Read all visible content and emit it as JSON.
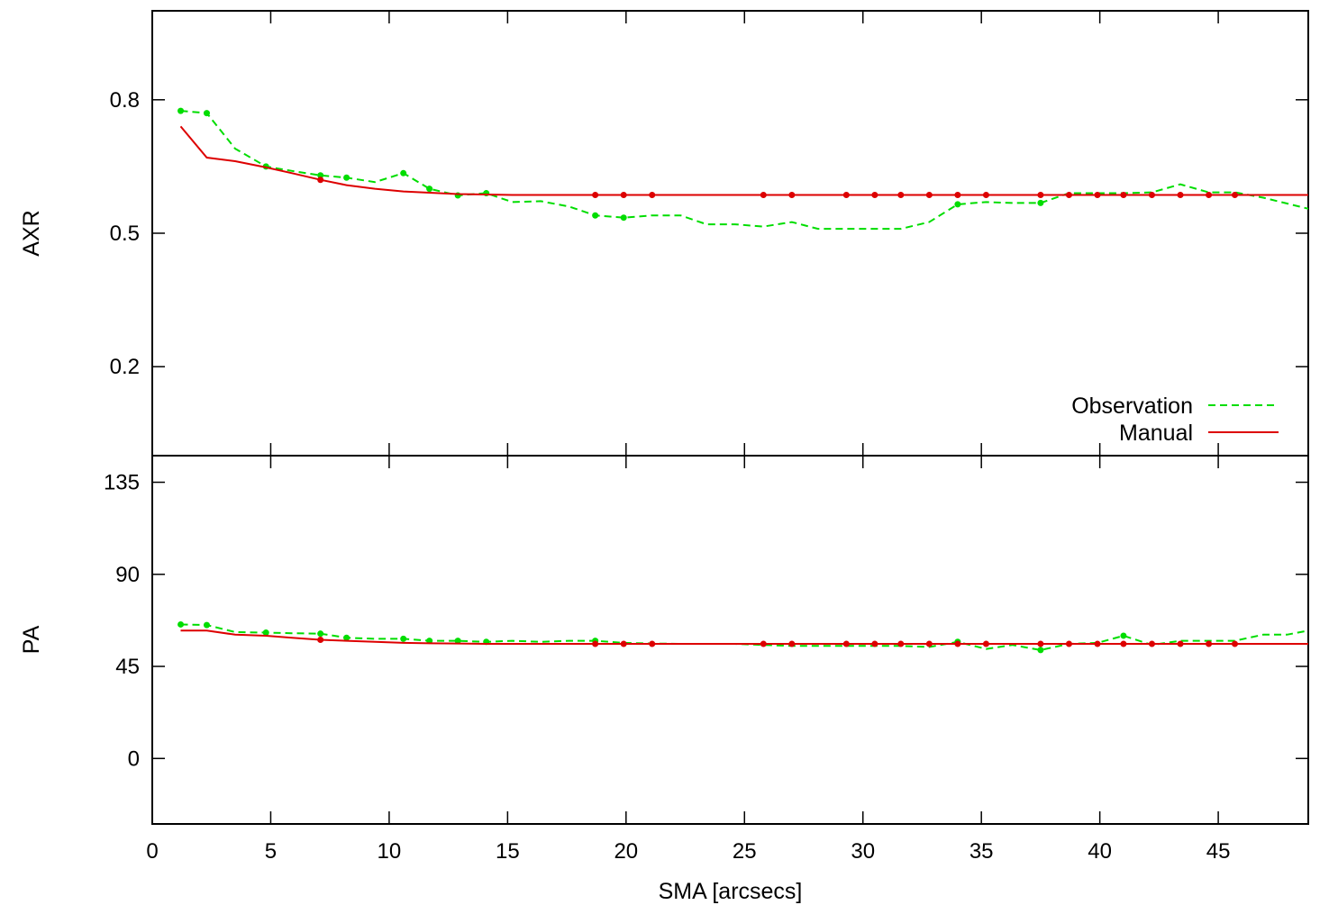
{
  "chart_data": [
    {
      "type": "line",
      "panel": "top",
      "ylabel": "AXR",
      "xlim": [
        0,
        48.8
      ],
      "ylim": [
        0.0,
        1.0
      ],
      "yticks": [
        {
          "value": 0.2,
          "label": "0.2"
        },
        {
          "value": 0.5,
          "label": "0.5"
        },
        {
          "value": 0.8,
          "label": "0.8"
        }
      ],
      "legend": {
        "position": "bottom-right",
        "entries": [
          {
            "label": "Observation",
            "series": 0
          },
          {
            "label": "Manual",
            "series": 1
          }
        ]
      },
      "series": [
        {
          "name": "Observation",
          "color": "#00dd00",
          "style": "dashed",
          "x": [
            1.2,
            2.3,
            3.5,
            4.8,
            5.9,
            7.1,
            8.2,
            9.4,
            10.6,
            11.7,
            12.9,
            14.1,
            15.2,
            16.4,
            17.6,
            18.7,
            19.9,
            21.1,
            22.3,
            23.4,
            24.6,
            25.8,
            27.0,
            28.1,
            29.3,
            30.5,
            31.6,
            32.8,
            34.0,
            35.2,
            36.3,
            37.5,
            38.7,
            39.9,
            41.0,
            42.2,
            43.4,
            44.6,
            45.7,
            46.9,
            48.8
          ],
          "y": [
            0.775,
            0.77,
            0.69,
            0.65,
            0.64,
            0.63,
            0.625,
            0.615,
            0.635,
            0.6,
            0.585,
            0.59,
            0.57,
            0.572,
            0.56,
            0.54,
            0.535,
            0.54,
            0.54,
            0.52,
            0.52,
            0.515,
            0.525,
            0.51,
            0.51,
            0.51,
            0.51,
            0.525,
            0.565,
            0.57,
            0.568,
            0.568,
            0.59,
            0.59,
            0.59,
            0.592,
            0.61,
            0.592,
            0.592,
            0.58,
            0.555
          ],
          "markers": [
            1.2,
            2.3,
            4.8,
            7.1,
            8.2,
            10.6,
            11.7,
            12.9,
            14.1,
            18.7,
            19.9,
            34.0,
            37.5
          ]
        },
        {
          "name": "Manual",
          "color": "#dd0000",
          "style": "solid",
          "x": [
            1.2,
            2.3,
            3.5,
            4.8,
            5.9,
            7.1,
            8.2,
            9.4,
            10.6,
            11.7,
            12.9,
            14.1,
            15.2,
            16.4,
            17.6,
            18.7,
            19.9,
            21.1,
            22.3,
            23.4,
            24.6,
            25.8,
            27.0,
            28.1,
            29.3,
            30.5,
            31.6,
            32.8,
            34.0,
            35.2,
            36.3,
            37.5,
            38.7,
            39.9,
            41.0,
            42.2,
            43.4,
            44.6,
            45.7,
            46.9,
            48.8
          ],
          "y": [
            0.74,
            0.67,
            0.662,
            0.648,
            0.635,
            0.62,
            0.608,
            0.6,
            0.594,
            0.591,
            0.588,
            0.587,
            0.586,
            0.586,
            0.586,
            0.586,
            0.586,
            0.586,
            0.586,
            0.586,
            0.586,
            0.586,
            0.586,
            0.586,
            0.586,
            0.586,
            0.586,
            0.586,
            0.586,
            0.586,
            0.586,
            0.586,
            0.586,
            0.586,
            0.586,
            0.586,
            0.586,
            0.586,
            0.586,
            0.586,
            0.586
          ],
          "markers": [
            7.1,
            18.7,
            19.9,
            21.1,
            25.8,
            27.0,
            29.3,
            30.5,
            31.6,
            32.8,
            34.0,
            35.2,
            37.5,
            38.7,
            39.9,
            41.0,
            42.2,
            43.4,
            44.6,
            45.7
          ]
        }
      ]
    },
    {
      "type": "line",
      "panel": "bottom",
      "ylabel": "PA",
      "xlabel": "SMA [arcsecs]",
      "xlim": [
        0,
        48.8
      ],
      "ylim": [
        -32,
        148
      ],
      "yticks": [
        {
          "value": 0,
          "label": "0"
        },
        {
          "value": 45,
          "label": "45"
        },
        {
          "value": 90,
          "label": "90"
        },
        {
          "value": 135,
          "label": "135"
        }
      ],
      "xticks": [
        {
          "value": 0,
          "label": "0"
        },
        {
          "value": 5,
          "label": "5"
        },
        {
          "value": 10,
          "label": "10"
        },
        {
          "value": 15,
          "label": "15"
        },
        {
          "value": 20,
          "label": "20"
        },
        {
          "value": 25,
          "label": "25"
        },
        {
          "value": 30,
          "label": "30"
        },
        {
          "value": 35,
          "label": "35"
        },
        {
          "value": 40,
          "label": "40"
        },
        {
          "value": 45,
          "label": "45"
        }
      ],
      "series": [
        {
          "name": "Observation",
          "color": "#00dd00",
          "style": "dashed",
          "x": [
            1.2,
            2.3,
            3.5,
            4.8,
            5.9,
            7.1,
            8.2,
            9.4,
            10.6,
            11.7,
            12.9,
            14.1,
            15.2,
            16.4,
            17.6,
            18.7,
            19.9,
            21.1,
            22.3,
            23.4,
            24.6,
            25.8,
            27.0,
            28.1,
            29.3,
            30.5,
            31.6,
            32.8,
            34.0,
            35.2,
            36.3,
            37.5,
            38.7,
            39.9,
            41.0,
            42.2,
            43.4,
            44.6,
            45.7,
            46.9,
            47.9,
            48.8
          ],
          "y": [
            65.5,
            65.2,
            61.8,
            61.5,
            61.2,
            61.0,
            59.0,
            58.5,
            58.5,
            57.5,
            57.5,
            57.0,
            57.5,
            57.0,
            57.5,
            57.5,
            56.5,
            56.2,
            56.0,
            56.0,
            56.0,
            55.5,
            55.0,
            55.0,
            55.0,
            55.0,
            55.0,
            54.5,
            57.0,
            53.5,
            55.5,
            53.0,
            56.0,
            56.5,
            60.0,
            55.5,
            57.5,
            57.5,
            57.5,
            60.5,
            60.5,
            62.5
          ],
          "markers": [
            1.2,
            2.3,
            4.8,
            7.1,
            8.2,
            10.6,
            11.7,
            12.9,
            14.1,
            18.7,
            34.0,
            37.5,
            41.0
          ]
        },
        {
          "name": "Manual",
          "color": "#dd0000",
          "style": "solid",
          "x": [
            1.2,
            2.3,
            3.5,
            4.8,
            5.9,
            7.1,
            8.2,
            9.4,
            10.6,
            11.7,
            12.9,
            14.1,
            15.2,
            16.4,
            17.6,
            18.7,
            19.9,
            21.1,
            22.3,
            23.4,
            24.6,
            25.8,
            27.0,
            28.1,
            29.3,
            30.5,
            31.6,
            32.8,
            34.0,
            35.2,
            36.3,
            37.5,
            38.7,
            39.9,
            41.0,
            42.2,
            43.4,
            44.6,
            45.7,
            46.9,
            48.8
          ],
          "y": [
            62.5,
            62.5,
            60.5,
            60.0,
            59.0,
            58.0,
            57.5,
            57.0,
            56.5,
            56.3,
            56.2,
            56.0,
            56.0,
            56.0,
            56.0,
            56.0,
            56.0,
            56.0,
            56.0,
            56.0,
            56.0,
            56.0,
            56.0,
            56.0,
            56.0,
            56.0,
            56.0,
            56.0,
            56.0,
            56.0,
            56.0,
            56.0,
            56.0,
            56.0,
            56.0,
            56.0,
            56.0,
            56.0,
            56.0,
            56.0,
            56.0
          ],
          "markers": [
            7.1,
            18.7,
            19.9,
            21.1,
            25.8,
            27.0,
            29.3,
            30.5,
            31.6,
            32.8,
            34.0,
            35.2,
            37.5,
            38.7,
            39.9,
            41.0,
            42.2,
            43.4,
            44.6,
            45.7
          ]
        }
      ]
    }
  ]
}
